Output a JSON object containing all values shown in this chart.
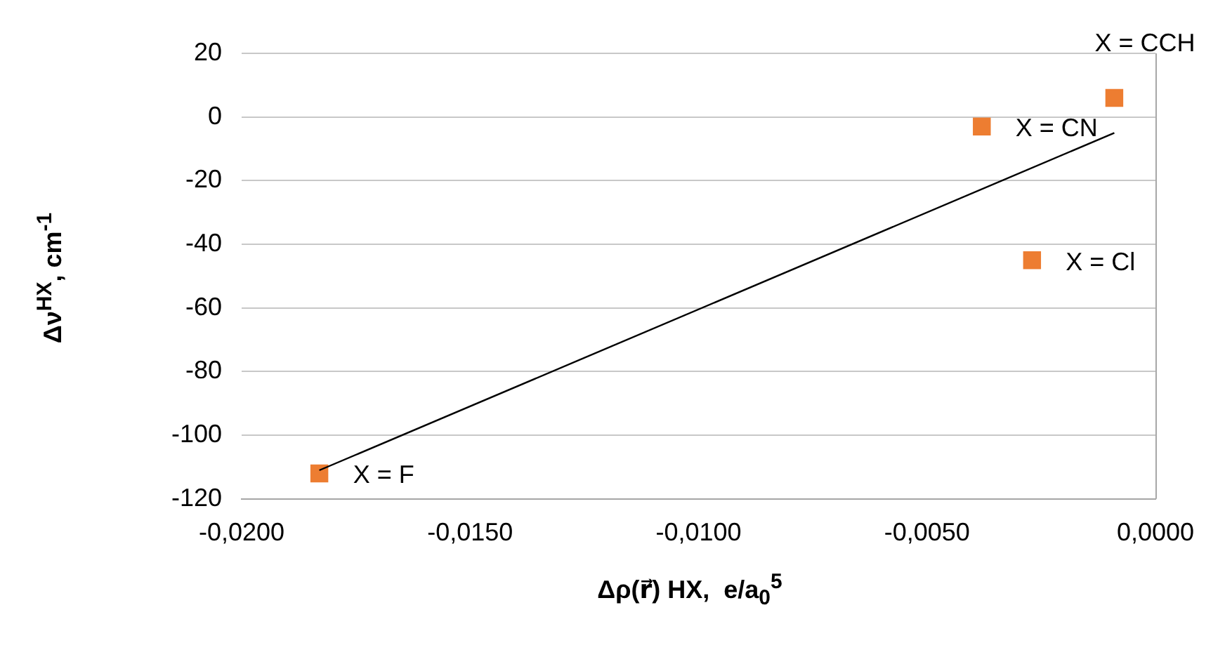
{
  "chart_data": {
    "type": "scatter",
    "xlabel": "Δρ(r⃗) HX,  e/a$_{0}$$^{5}$",
    "ylabel": "Δν$^{HX}$, cm$^{-1}$",
    "series": [
      {
        "type": "scatter",
        "color": "#ed7d31",
        "marker": "square",
        "x": [
          -0.0183,
          -0.0038,
          -0.0027,
          -0.0009
        ],
        "values": [
          -112,
          -3,
          -45,
          6
        ]
      },
      {
        "type": "line",
        "color": "#000000",
        "marker": "none",
        "line_style": "solid",
        "x": [
          -0.0183,
          -0.0009
        ],
        "values": [
          -111,
          -5
        ]
      }
    ],
    "annotations": [
      {
        "text": "X = F",
        "x": -0.0183,
        "y": -112
      },
      {
        "text": "X = CN",
        "x": -0.0038,
        "y": -3
      },
      {
        "text": "X = Cl",
        "x": -0.0027,
        "y": -45
      },
      {
        "text": "X = CCH",
        "x": -0.0009,
        "y": 6
      }
    ],
    "xlim": [
      -0.02,
      0
    ],
    "xticks": [
      {
        "value": -0.02,
        "label": "-0,0200"
      },
      {
        "value": -0.015,
        "label": "-0,0150"
      },
      {
        "value": -0.01,
        "label": "-0,0100"
      },
      {
        "value": -0.005,
        "label": "-0,0050"
      },
      {
        "value": 0,
        "label": "0,0000"
      }
    ],
    "ylim": [
      -120,
      20
    ],
    "yticks": [
      -120,
      -100,
      -80,
      -60,
      -40,
      -20,
      0,
      20
    ],
    "grid": "y",
    "legend": false
  }
}
